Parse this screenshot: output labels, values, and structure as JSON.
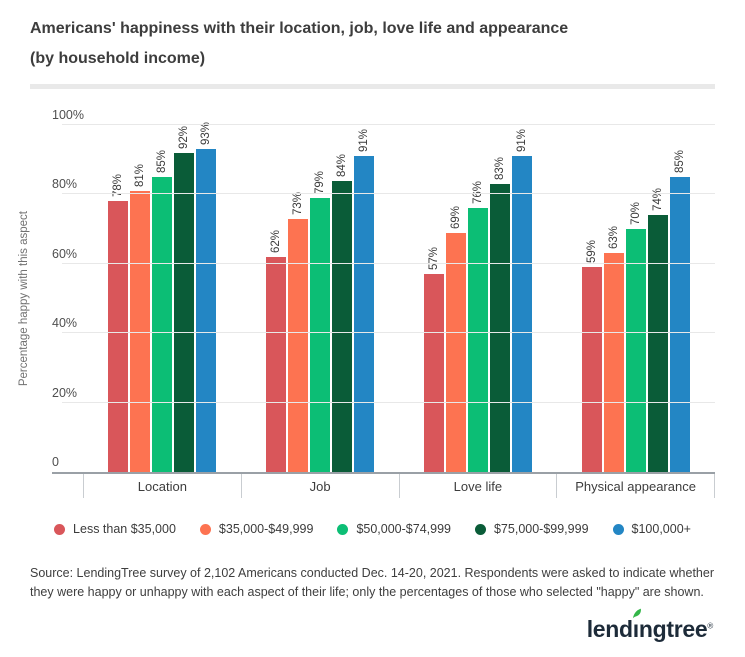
{
  "header": {
    "title_line1": "Americans' happiness with their location, job, love life and appearance",
    "title_line2": "(by household income)"
  },
  "chart_data": {
    "type": "bar",
    "title": "Americans' happiness with their location, job, love life and appearance (by household income)",
    "categories": [
      "Location",
      "Job",
      "Love life",
      "Physical appearance"
    ],
    "series": [
      {
        "name": "Less than $35,000",
        "color": "#d9565a",
        "values": [
          78,
          62,
          57,
          59
        ]
      },
      {
        "name": "$35,000-$49,999",
        "color": "#fd7351",
        "values": [
          81,
          73,
          69,
          63
        ]
      },
      {
        "name": "$50,000-$74,999",
        "color": "#0cbe75",
        "values": [
          85,
          79,
          76,
          70
        ]
      },
      {
        "name": "$75,000-$99,999",
        "color": "#0a5c38",
        "values": [
          92,
          84,
          83,
          74
        ]
      },
      {
        "name": "$100,000+",
        "color": "#2386c4",
        "values": [
          93,
          91,
          91,
          85
        ]
      }
    ],
    "ylabel": "Percentage happy with this aspect",
    "xlabel": "",
    "ylim": [
      0,
      100
    ],
    "yticks": [
      {
        "label": "0",
        "value": 0
      },
      {
        "label": "20%",
        "value": 20
      },
      {
        "label": "40%",
        "value": 40
      },
      {
        "label": "60%",
        "value": 60
      },
      {
        "label": "80%",
        "value": 80
      },
      {
        "label": "100%",
        "value": 100
      }
    ],
    "grid": true,
    "legend_position": "bottom",
    "value_suffix": "%"
  },
  "footer": {
    "source_text": "Source: LendingTree survey of 2,102 Americans conducted Dec. 14-20, 2021. Respondents were asked to indicate whether they were happy or unhappy with each aspect of their life; only the percentages of those who selected \"happy\" are shown.",
    "logo": {
      "prefix": "lend",
      "dotless_i": "ı",
      "suffix": "ngtree",
      "trademark": "®",
      "text_color": "#1d2b39",
      "leaf_color": "#33b648"
    }
  }
}
